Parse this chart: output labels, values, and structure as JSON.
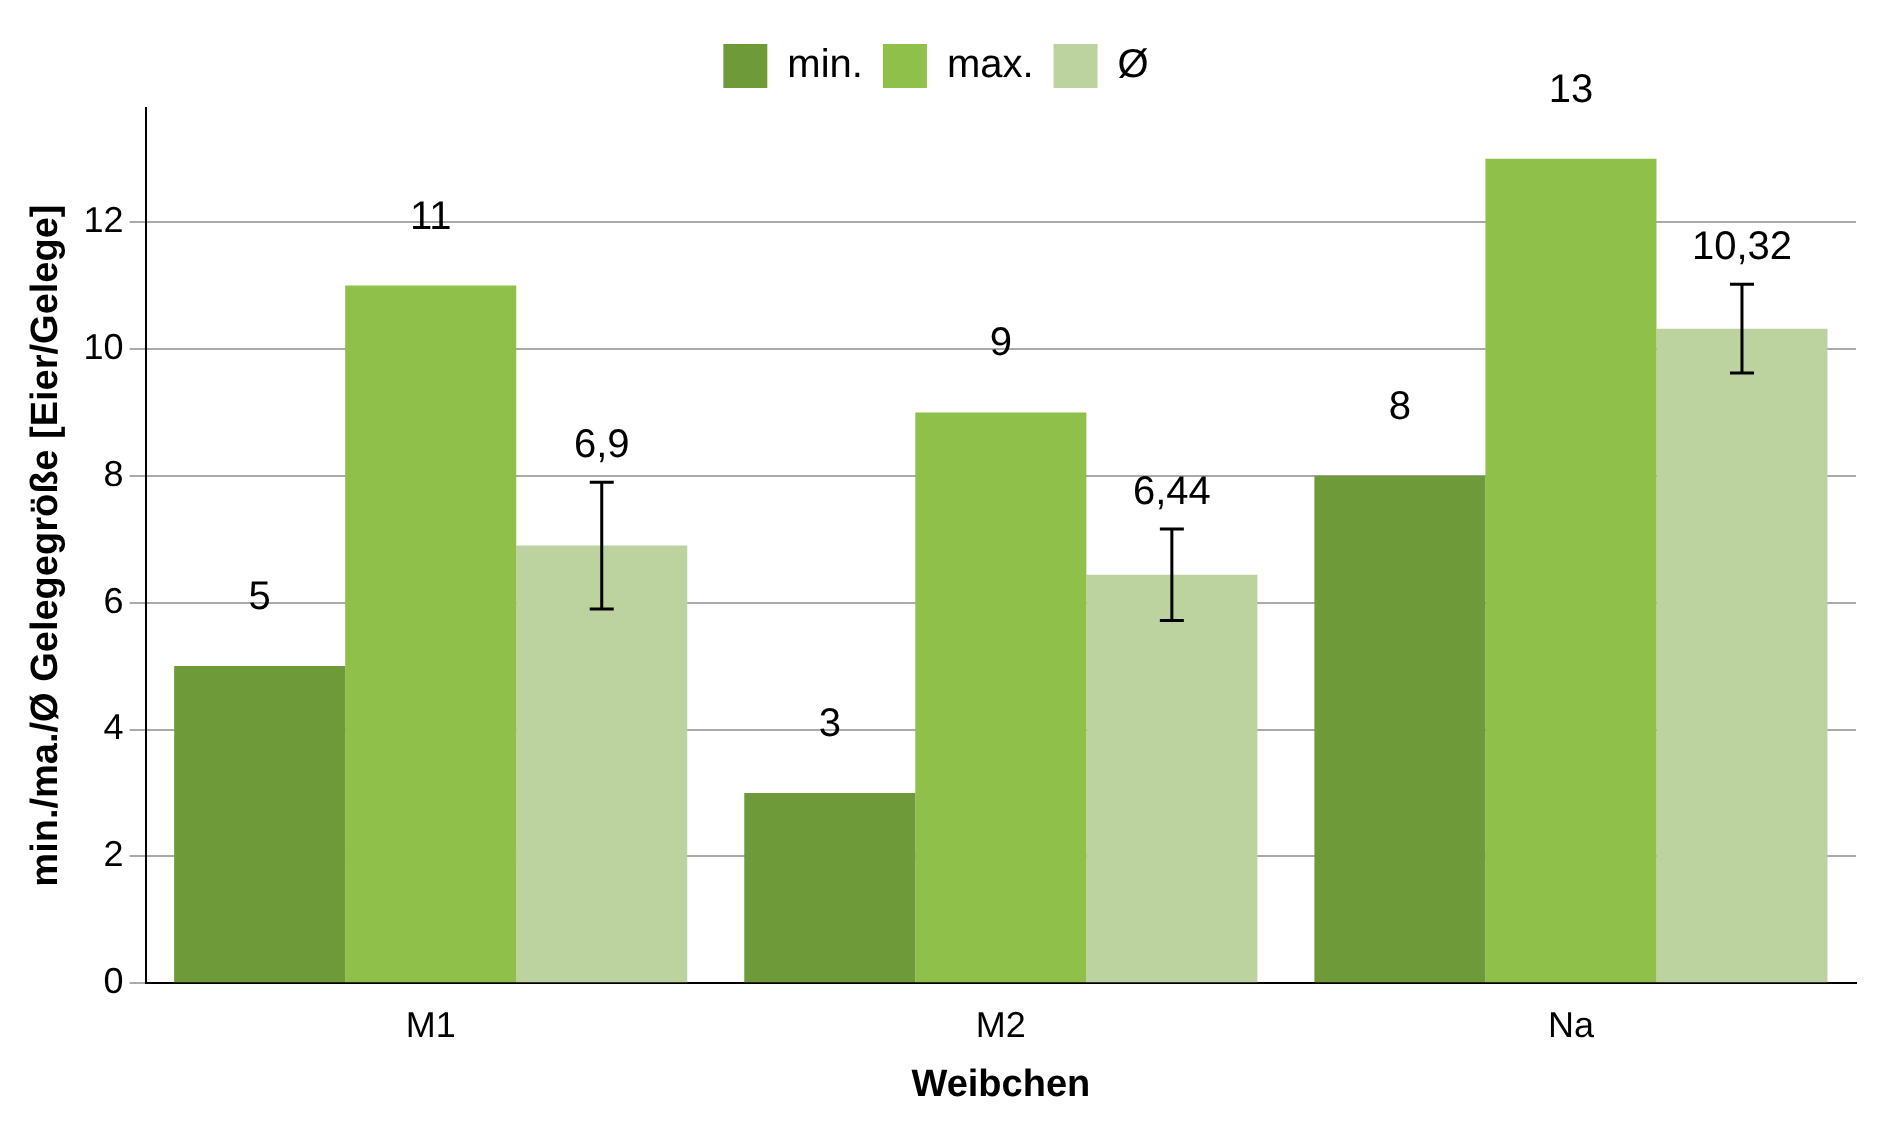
{
  "chart_data": {
    "type": "bar",
    "xlabel": "Weibchen",
    "ylabel": "min./ma./Ø Gelegegröße [Eier/Gelege]",
    "categories": [
      "M1",
      "M2",
      "Na"
    ],
    "series": [
      {
        "name": "min.",
        "color": "#6f9a3a",
        "values": [
          5,
          3,
          8
        ],
        "value_labels": [
          "5",
          "3",
          "8"
        ]
      },
      {
        "name": "max.",
        "color": "#8fc04a",
        "values": [
          11,
          9,
          13
        ],
        "value_labels": [
          "11",
          "9",
          "13"
        ]
      },
      {
        "name": "Ø",
        "color": "#bcd3a0",
        "values": [
          6.9,
          6.44,
          10.32
        ],
        "value_labels": [
          "6,9",
          "6,44",
          "10,32"
        ],
        "errors": [
          1.0,
          0.72,
          0.7
        ]
      }
    ],
    "ylim": [
      0,
      13.8
    ],
    "yticks": [
      0,
      2,
      4,
      6,
      8,
      10,
      12
    ],
    "grid": "y",
    "legend": "top"
  }
}
